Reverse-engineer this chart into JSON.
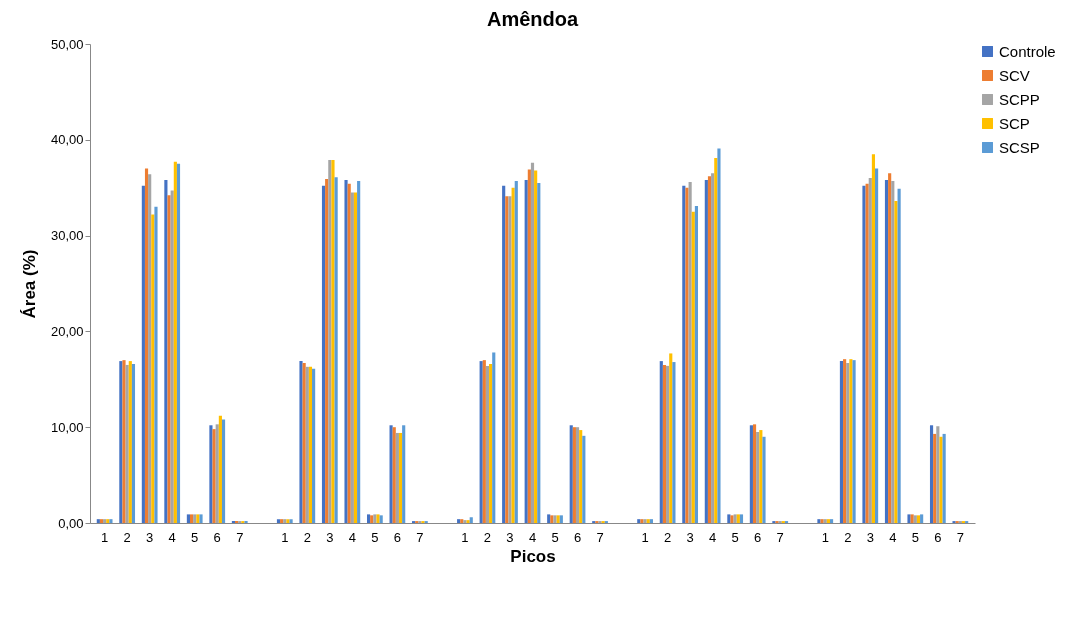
{
  "chart_data": {
    "type": "bar",
    "title": "Amêndoa",
    "xlabel": "Picos",
    "ylabel": "Área (%)",
    "categories": [
      "1",
      "2",
      "3",
      "4",
      "5",
      "6",
      "7",
      null,
      "1",
      "2",
      "3",
      "4",
      "5",
      "6",
      "7",
      null,
      "1",
      "2",
      "3",
      "4",
      "5",
      "6",
      "7",
      null,
      "1",
      "2",
      "3",
      "4",
      "5",
      "6",
      "7",
      null,
      "1",
      "2",
      "3",
      "4",
      "5",
      "6",
      "7"
    ],
    "series": [
      {
        "name": "Controle",
        "color": "#4472c4",
        "values": [
          0.4,
          16.9,
          35.2,
          35.8,
          0.9,
          10.2,
          0.2,
          null,
          0.4,
          16.9,
          35.2,
          35.8,
          0.9,
          10.2,
          0.2,
          null,
          0.4,
          16.9,
          35.2,
          35.8,
          0.9,
          10.2,
          0.2,
          null,
          0.4,
          16.9,
          35.2,
          35.8,
          0.9,
          10.2,
          0.2,
          null,
          0.4,
          16.9,
          35.2,
          35.8,
          0.9,
          10.2,
          0.2
        ]
      },
      {
        "name": "SCV",
        "color": "#ed7d31",
        "values": [
          0.4,
          17.0,
          37.0,
          34.2,
          0.9,
          9.8,
          0.2,
          null,
          0.4,
          16.7,
          35.9,
          35.4,
          0.8,
          10.0,
          0.2,
          null,
          0.4,
          17.0,
          34.1,
          36.9,
          0.8,
          10.0,
          0.2,
          null,
          0.4,
          16.5,
          35.0,
          36.2,
          0.8,
          10.3,
          0.2,
          null,
          0.4,
          17.1,
          35.4,
          36.5,
          0.9,
          9.3,
          0.2
        ]
      },
      {
        "name": "SCPP",
        "color": "#a5a5a5",
        "values": [
          0.4,
          16.5,
          36.4,
          34.7,
          0.9,
          10.3,
          0.2,
          null,
          0.4,
          16.3,
          37.9,
          34.5,
          0.9,
          9.4,
          0.2,
          null,
          0.3,
          16.4,
          34.1,
          37.6,
          0.8,
          10.0,
          0.2,
          null,
          0.4,
          16.4,
          35.6,
          36.5,
          0.9,
          9.5,
          0.2,
          null,
          0.4,
          16.7,
          36.0,
          35.7,
          0.8,
          10.1,
          0.2
        ]
      },
      {
        "name": "SCP",
        "color": "#ffc000",
        "values": [
          0.4,
          16.9,
          32.2,
          37.7,
          0.9,
          11.2,
          0.2,
          null,
          0.4,
          16.3,
          37.9,
          34.5,
          0.9,
          9.4,
          0.2,
          null,
          0.3,
          16.6,
          35.0,
          36.8,
          0.8,
          9.7,
          0.2,
          null,
          0.4,
          17.7,
          32.5,
          38.1,
          0.9,
          9.7,
          0.2,
          null,
          0.4,
          17.1,
          38.5,
          33.6,
          0.8,
          9.0,
          0.2
        ]
      },
      {
        "name": "SCSP",
        "color": "#5b9bd5",
        "values": [
          0.4,
          16.6,
          33.0,
          37.5,
          0.9,
          10.8,
          0.2,
          null,
          0.4,
          16.1,
          36.1,
          35.7,
          0.8,
          10.2,
          0.2,
          null,
          0.6,
          17.8,
          35.7,
          35.5,
          0.8,
          9.1,
          0.2,
          null,
          0.4,
          16.8,
          33.1,
          39.1,
          0.9,
          9.0,
          0.2,
          null,
          0.4,
          17.0,
          37.0,
          34.9,
          0.9,
          9.3,
          0.2
        ]
      }
    ],
    "ylim": [
      0,
      50
    ],
    "yticks": [
      {
        "value": 0,
        "label": "0,00"
      },
      {
        "value": 10,
        "label": "10,00"
      },
      {
        "value": 20,
        "label": "20,00"
      },
      {
        "value": 30,
        "label": "30,00"
      },
      {
        "value": 40,
        "label": "40,00"
      },
      {
        "value": 50,
        "label": "50,00"
      }
    ],
    "legend": "top right"
  }
}
